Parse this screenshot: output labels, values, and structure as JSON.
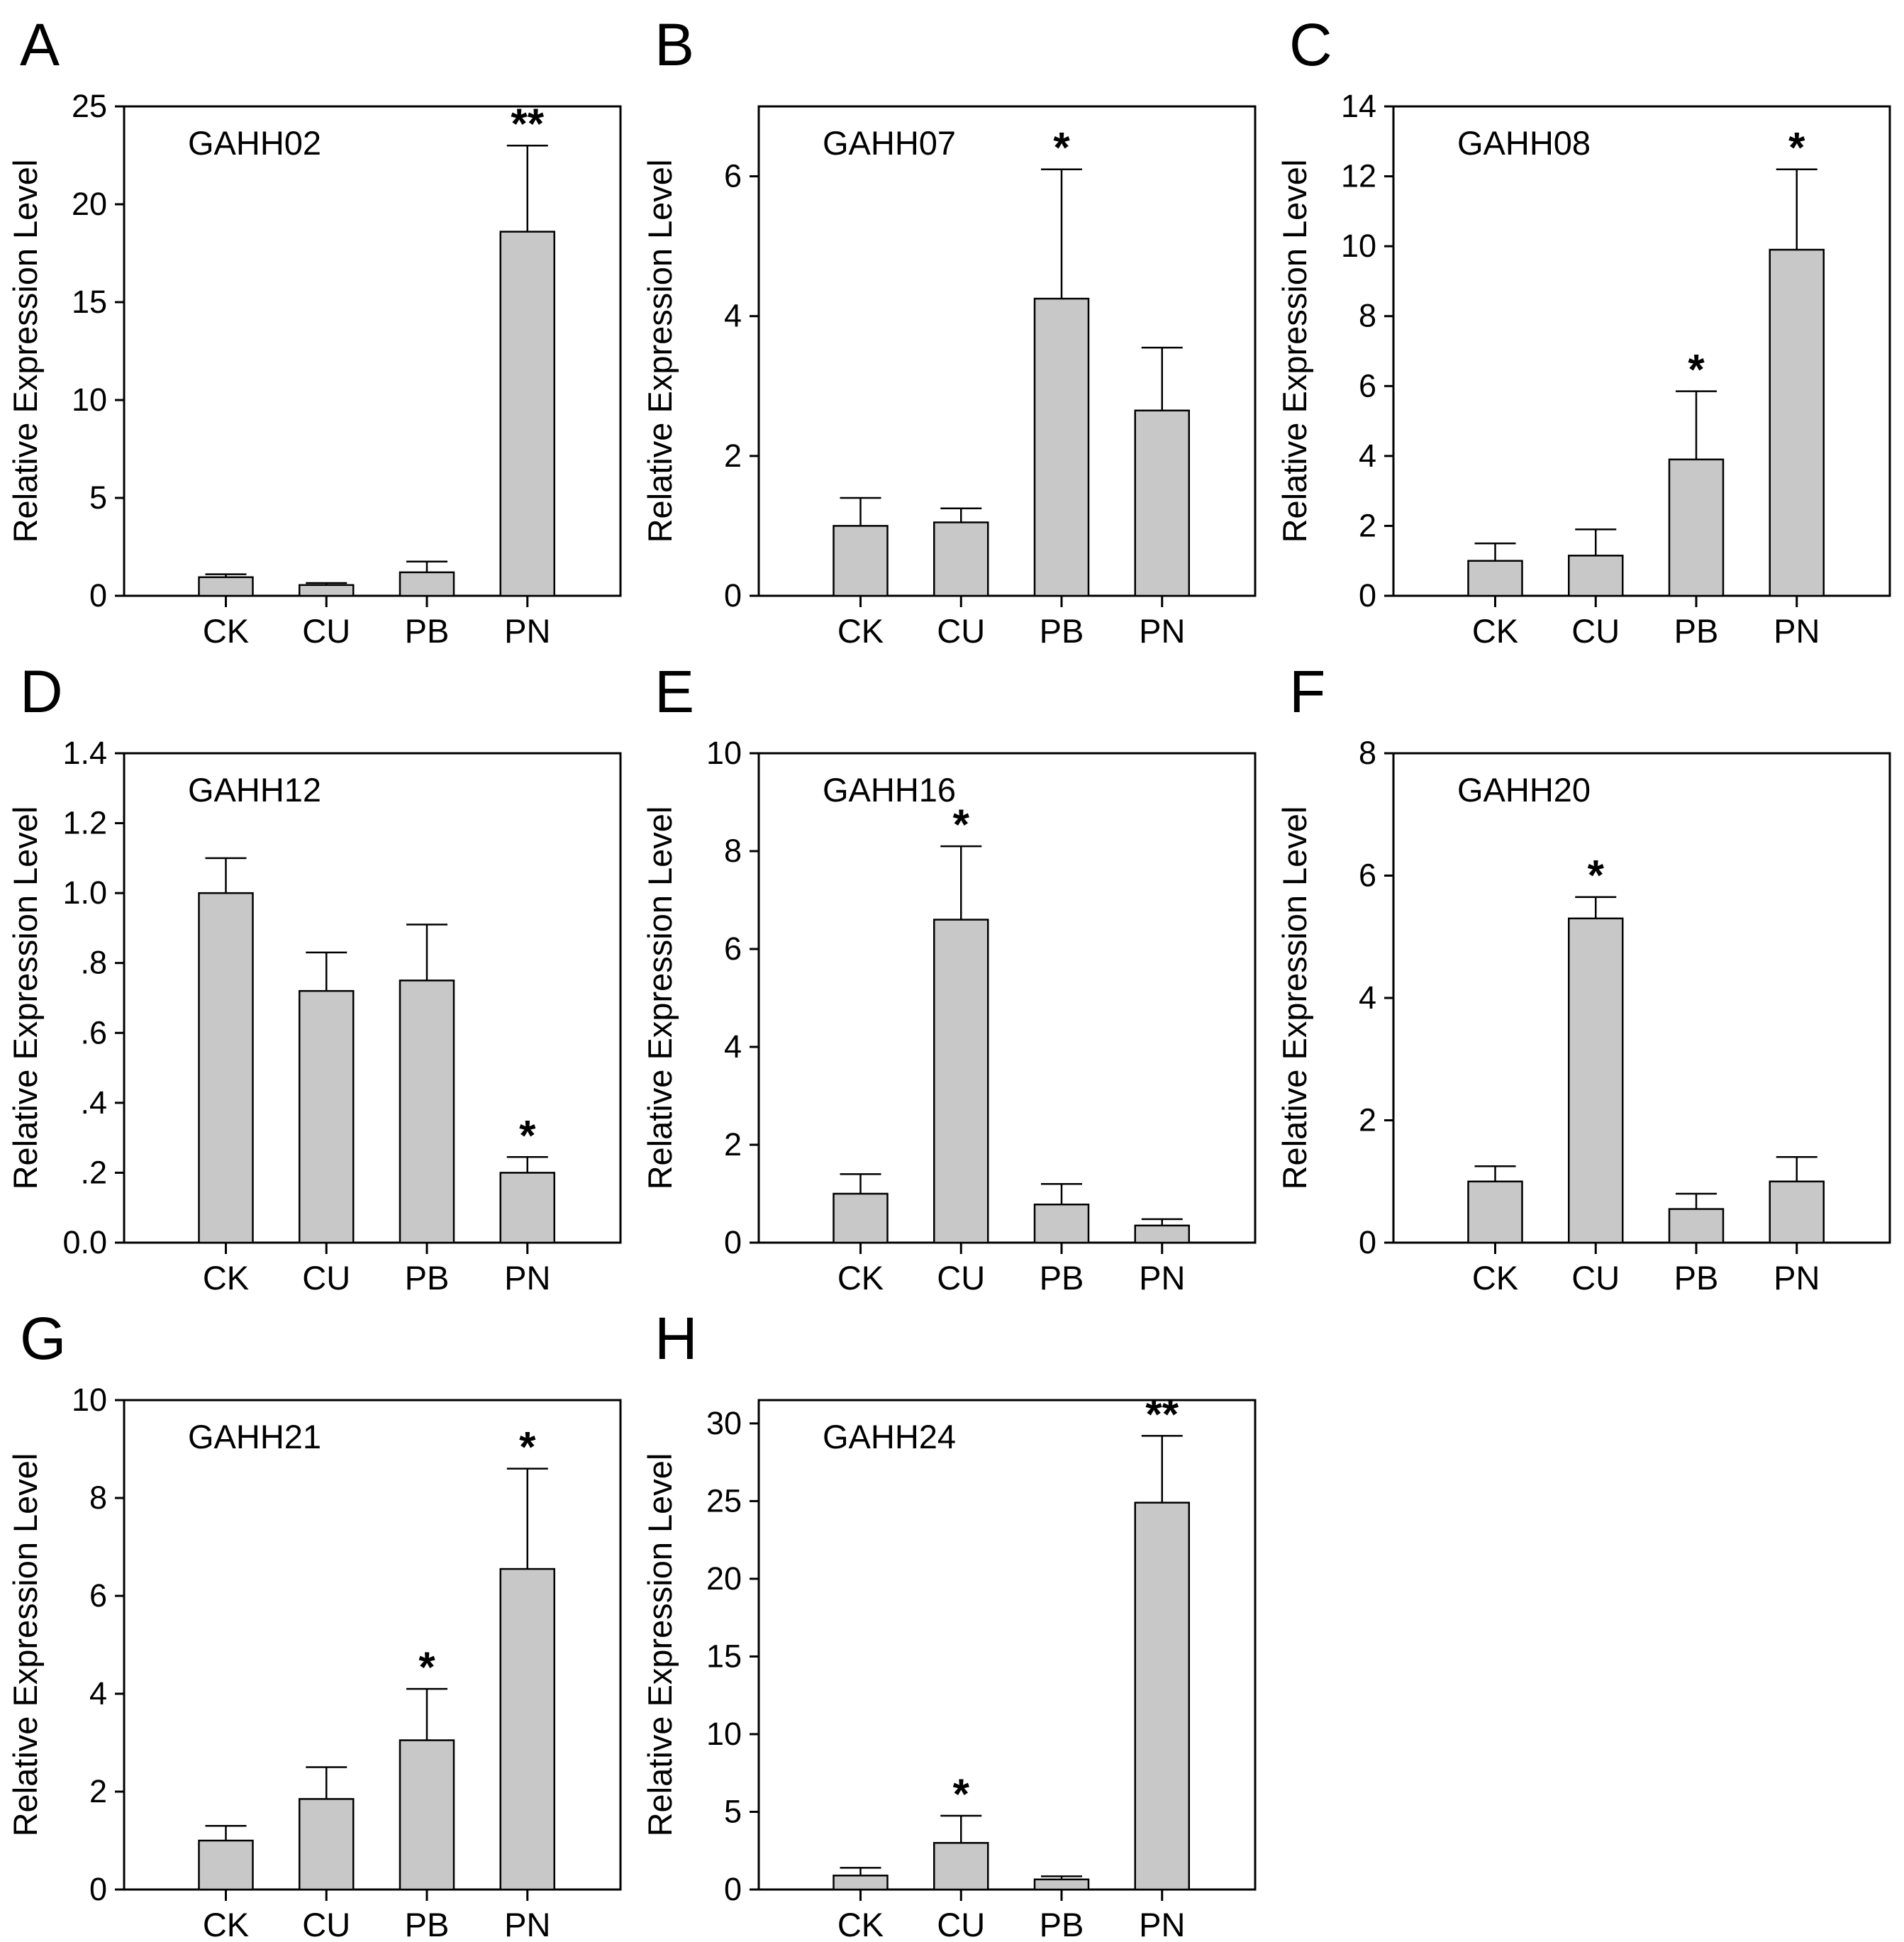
{
  "figure": {
    "background": "#ffffff",
    "bar_fill": "#c8c8c8",
    "axis_color": "#000000",
    "ylabel": "Relative Expression Level",
    "categories": [
      "CK",
      "CU",
      "PB",
      "PN"
    ]
  },
  "chart_data": [
    {
      "type": "bar",
      "panel": "A",
      "title": "GAHH02",
      "ylabel": "Relative Expression Level",
      "xlabel": "",
      "categories": [
        "CK",
        "CU",
        "PB",
        "PN"
      ],
      "values": [
        0.95,
        0.55,
        1.2,
        18.6
      ],
      "error_tops": [
        1.1,
        0.65,
        1.75,
        23.0
      ],
      "significance": [
        "",
        "",
        "",
        "**"
      ],
      "ylim": [
        0,
        25
      ],
      "yticks": [
        0,
        5,
        10,
        15,
        20,
        25
      ],
      "ytick_labels": [
        "0",
        "5",
        "10",
        "15",
        "20",
        "25"
      ],
      "grid": false,
      "legend": false
    },
    {
      "type": "bar",
      "panel": "B",
      "title": "GAHH07",
      "ylabel": "Relative Expression Level",
      "xlabel": "",
      "categories": [
        "CK",
        "CU",
        "PB",
        "PN"
      ],
      "values": [
        1.0,
        1.05,
        4.25,
        2.65
      ],
      "error_tops": [
        1.4,
        1.25,
        6.1,
        3.55
      ],
      "significance": [
        "",
        "",
        "*",
        ""
      ],
      "ylim": [
        0,
        7
      ],
      "yticks": [
        0,
        2,
        4,
        6
      ],
      "ytick_labels": [
        "0",
        "2",
        "4",
        "6"
      ],
      "grid": false,
      "legend": false
    },
    {
      "type": "bar",
      "panel": "C",
      "title": "GAHH08",
      "ylabel": "Relative Expression Level",
      "xlabel": "",
      "categories": [
        "CK",
        "CU",
        "PB",
        "PN"
      ],
      "values": [
        1.0,
        1.15,
        3.9,
        9.9
      ],
      "error_tops": [
        1.5,
        1.9,
        5.85,
        12.2
      ],
      "significance": [
        "",
        "",
        "*",
        "*"
      ],
      "ylim": [
        0,
        14
      ],
      "yticks": [
        0,
        2,
        4,
        6,
        8,
        10,
        12,
        14
      ],
      "ytick_labels": [
        "0",
        "2",
        "4",
        "6",
        "8",
        "10",
        "12",
        "14"
      ],
      "grid": false,
      "legend": false
    },
    {
      "type": "bar",
      "panel": "D",
      "title": "GAHH12",
      "ylabel": "Relative Expression Level",
      "xlabel": "",
      "categories": [
        "CK",
        "CU",
        "PB",
        "PN"
      ],
      "values": [
        1.0,
        0.72,
        0.75,
        0.2
      ],
      "error_tops": [
        1.1,
        0.83,
        0.91,
        0.245
      ],
      "significance": [
        "",
        "",
        "",
        "*"
      ],
      "ylim": [
        0,
        1.4
      ],
      "yticks": [
        0,
        0.2,
        0.4,
        0.6,
        0.8,
        1.0,
        1.2,
        1.4
      ],
      "ytick_labels": [
        "0.0",
        ".2",
        ".4",
        ".6",
        ".8",
        "1.0",
        "1.2",
        "1.4"
      ],
      "grid": false,
      "legend": false
    },
    {
      "type": "bar",
      "panel": "E",
      "title": "GAHH16",
      "ylabel": "Relative Expression Level",
      "xlabel": "",
      "categories": [
        "CK",
        "CU",
        "PB",
        "PN"
      ],
      "values": [
        1.0,
        6.6,
        0.78,
        0.35
      ],
      "error_tops": [
        1.4,
        8.1,
        1.2,
        0.48
      ],
      "significance": [
        "",
        "*",
        "",
        ""
      ],
      "ylim": [
        0,
        10
      ],
      "yticks": [
        0,
        2,
        4,
        6,
        8,
        10
      ],
      "ytick_labels": [
        "0",
        "2",
        "4",
        "6",
        "8",
        "10"
      ],
      "grid": false,
      "legend": false
    },
    {
      "type": "bar",
      "panel": "F",
      "title": "GAHH20",
      "ylabel": "Relative Expression Level",
      "xlabel": "",
      "categories": [
        "CK",
        "CU",
        "PB",
        "PN"
      ],
      "values": [
        1.0,
        5.3,
        0.55,
        1.0
      ],
      "error_tops": [
        1.25,
        5.65,
        0.8,
        1.4
      ],
      "significance": [
        "",
        "*",
        "",
        ""
      ],
      "ylim": [
        0,
        8
      ],
      "yticks": [
        0,
        2,
        4,
        6,
        8
      ],
      "ytick_labels": [
        "0",
        "2",
        "4",
        "6",
        "8"
      ],
      "grid": false,
      "legend": false
    },
    {
      "type": "bar",
      "panel": "G",
      "title": "GAHH21",
      "ylabel": "Relative Expression Level",
      "xlabel": "",
      "categories": [
        "CK",
        "CU",
        "PB",
        "PN"
      ],
      "values": [
        1.0,
        1.85,
        3.05,
        6.55
      ],
      "error_tops": [
        1.3,
        2.5,
        4.1,
        8.6
      ],
      "significance": [
        "",
        "",
        "*",
        "*"
      ],
      "ylim": [
        0,
        10
      ],
      "yticks": [
        0,
        2,
        4,
        6,
        8,
        10
      ],
      "ytick_labels": [
        "0",
        "2",
        "4",
        "6",
        "8",
        "10"
      ],
      "grid": false,
      "legend": false
    },
    {
      "type": "bar",
      "panel": "H",
      "title": "GAHH24",
      "ylabel": "Relative Expression Level",
      "xlabel": "",
      "categories": [
        "CK",
        "CU",
        "PB",
        "PN"
      ],
      "values": [
        0.9,
        3.0,
        0.65,
        24.9
      ],
      "error_tops": [
        1.4,
        4.75,
        0.85,
        29.2
      ],
      "significance": [
        "",
        "*",
        "",
        "**"
      ],
      "ylim": [
        0,
        31.5
      ],
      "yticks": [
        0,
        5,
        10,
        15,
        20,
        25,
        30
      ],
      "ytick_labels": [
        "0",
        "5",
        "10",
        "15",
        "20",
        "25",
        "30"
      ],
      "grid": false,
      "legend": false
    }
  ]
}
